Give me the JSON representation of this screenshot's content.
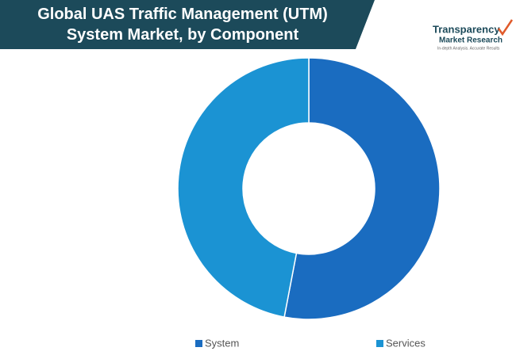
{
  "chart_data": {
    "type": "donut",
    "title": "Global UAS Traffic Management (UTM) System Market, by Component",
    "categories": [
      "System",
      "Services"
    ],
    "values": [
      53,
      47
    ],
    "colors": [
      "#1a6cc0",
      "#1b93d3"
    ],
    "legend": "bottom"
  },
  "logo": {
    "name_line1": "Transparency",
    "name_line2": "Market Research",
    "tagline": "In-depth Analysis. Accurate Results"
  }
}
